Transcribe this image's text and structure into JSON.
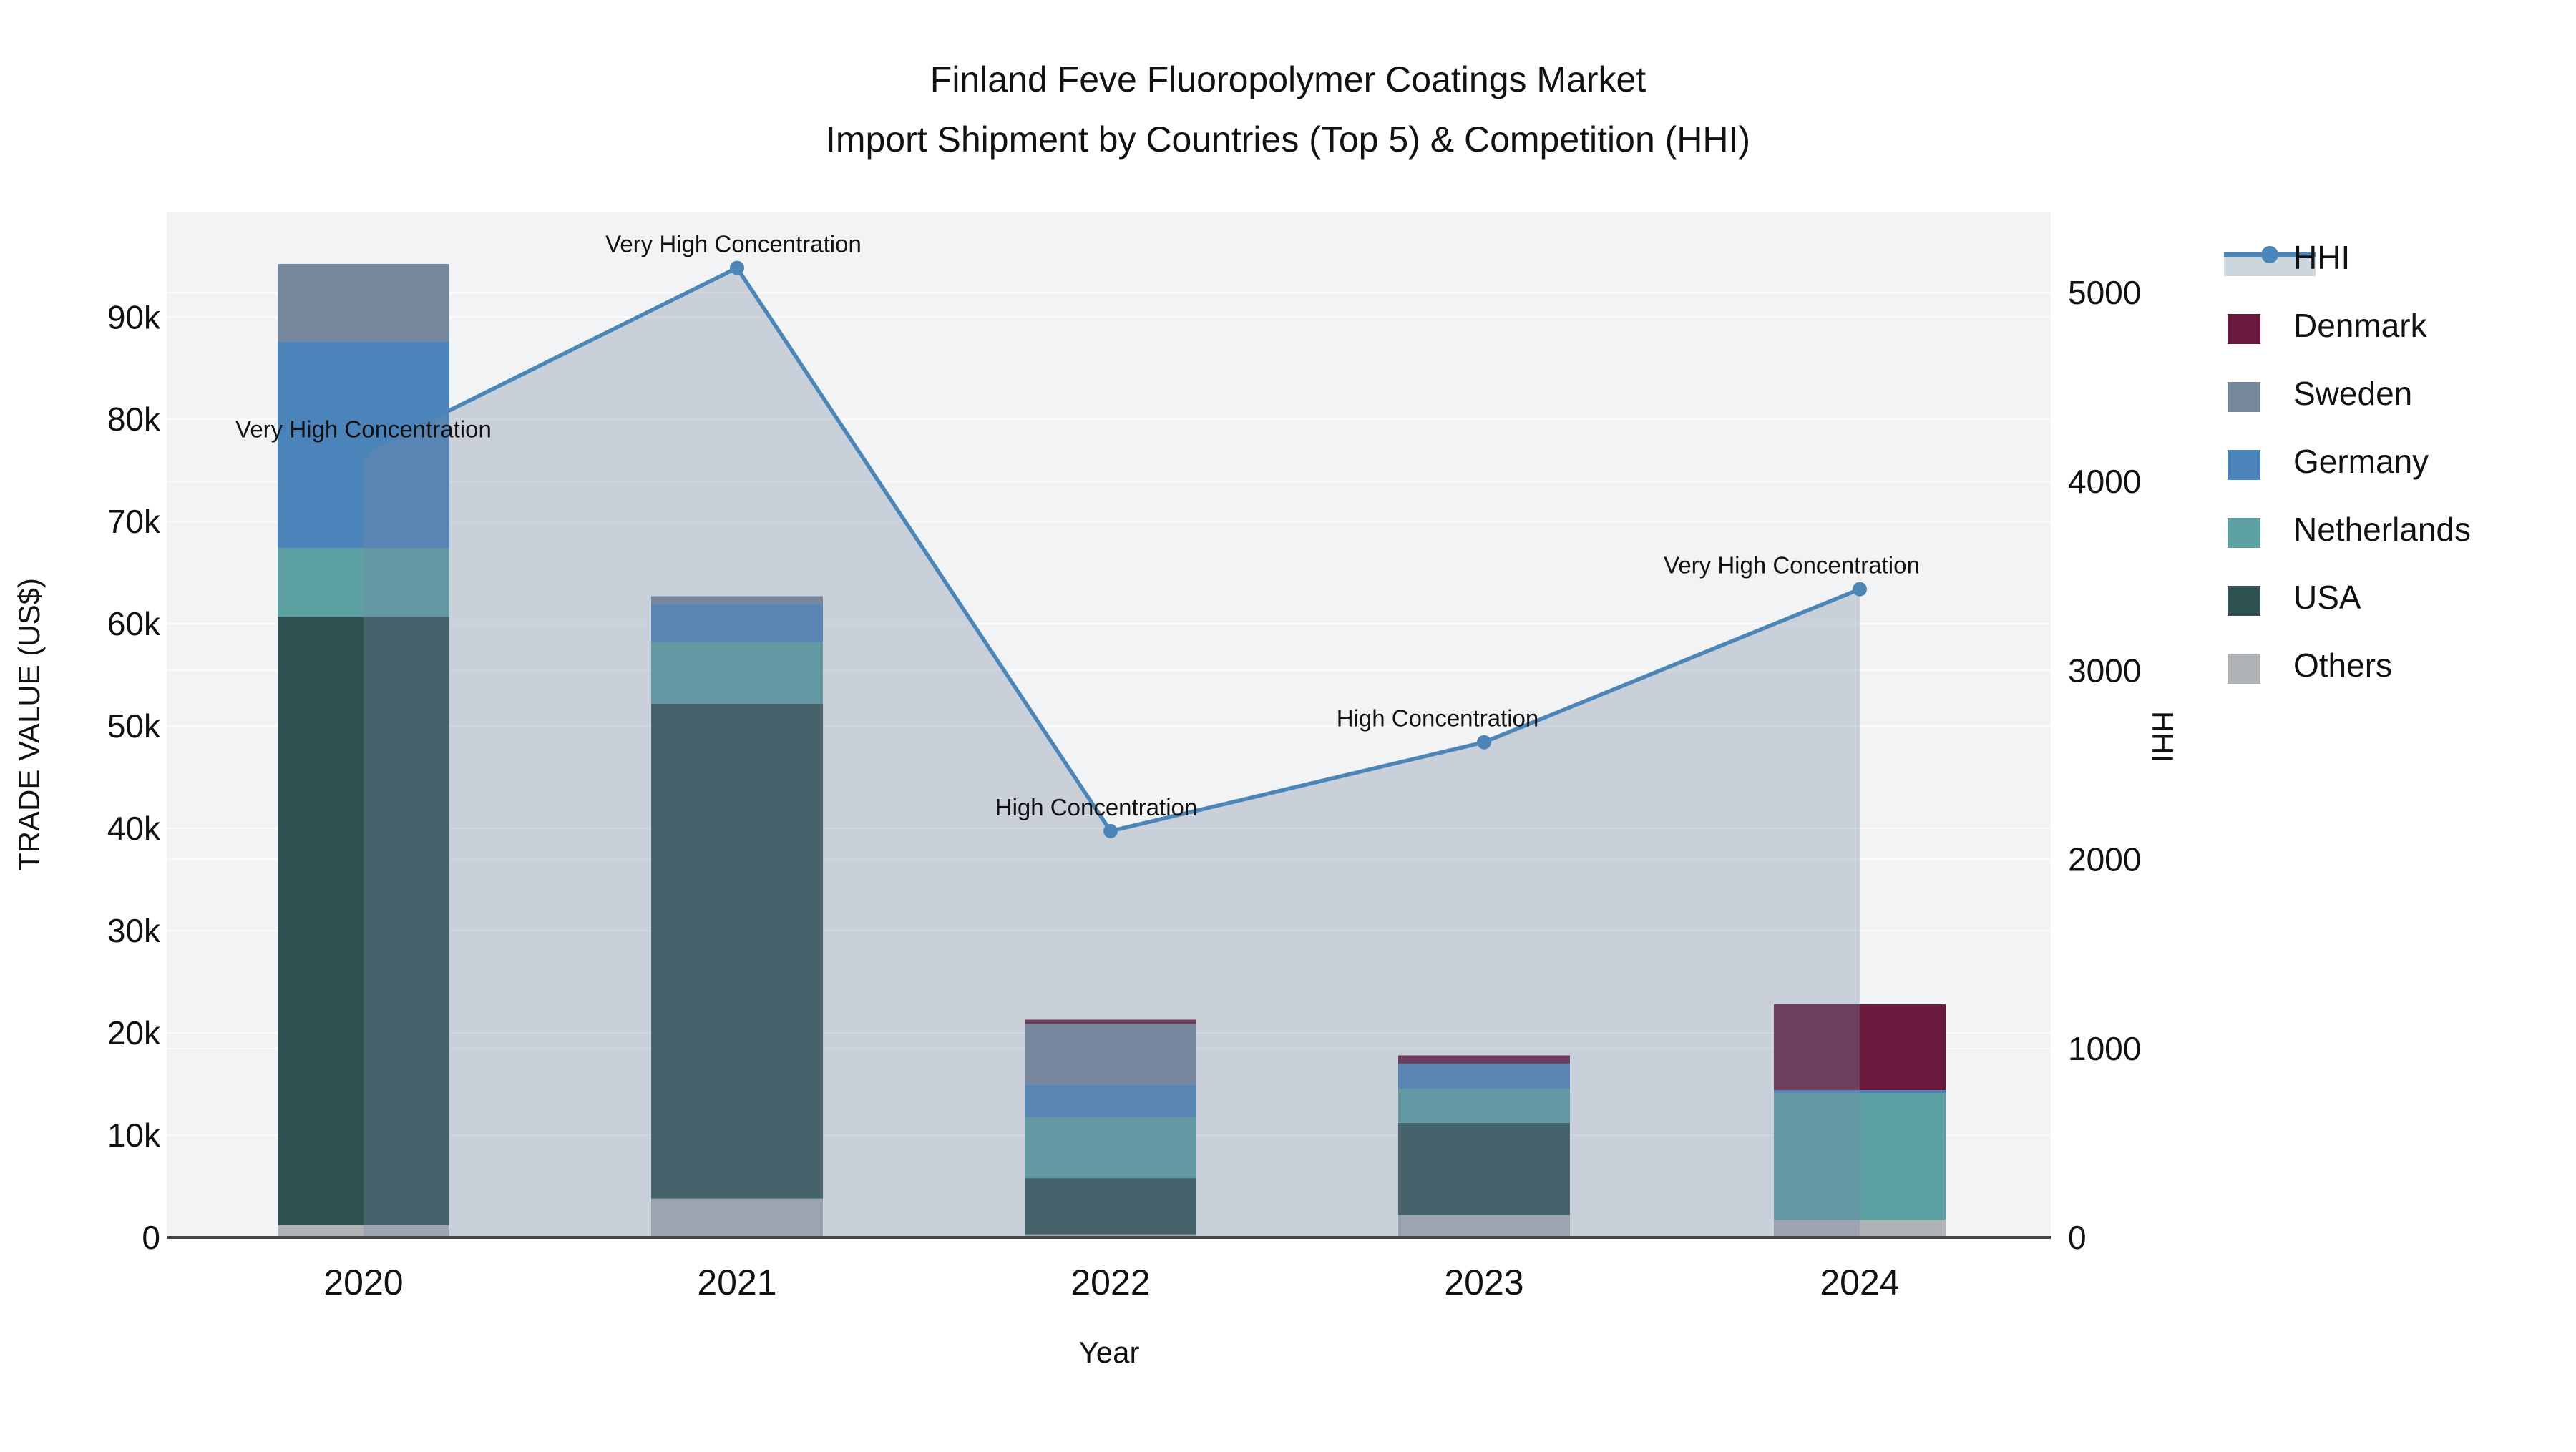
{
  "title": {
    "line1": "Finland Feve Fluoropolymer Coatings Market",
    "line2": "Import Shipment by Countries (Top 5) & Competition (HHI)"
  },
  "axes": {
    "left": {
      "title": "TRADE VALUE (US$)",
      "tick_labels": [
        "0",
        "10k",
        "20k",
        "30k",
        "40k",
        "50k",
        "60k",
        "70k",
        "80k",
        "90k"
      ]
    },
    "right": {
      "title": "HHI",
      "tick_labels": [
        "0",
        "1000",
        "2000",
        "3000",
        "4000",
        "5000"
      ]
    },
    "x": {
      "title": "Year",
      "tick_labels": [
        "2020",
        "2021",
        "2022",
        "2023",
        "2024"
      ]
    }
  },
  "legend": {
    "items": [
      {
        "label": "HHI",
        "type": "line",
        "color": "#4C86B8"
      },
      {
        "label": "Denmark",
        "type": "swatch",
        "color": "#691A3D"
      },
      {
        "label": "Sweden",
        "type": "swatch",
        "color": "#76879B"
      },
      {
        "label": "Germany",
        "type": "swatch",
        "color": "#4A84BB"
      },
      {
        "label": "Netherlands",
        "type": "swatch",
        "color": "#5CA0A2"
      },
      {
        "label": "USA",
        "type": "swatch",
        "color": "#2F5150"
      },
      {
        "label": "Others",
        "type": "swatch",
        "color": "#AFB3B5"
      }
    ]
  },
  "colors": {
    "plot_background": "#F2F3F4",
    "gridline": "#FFFFFF",
    "axis_line": "#444444",
    "hhi_line": "#4C86B8",
    "hhi_fill": "rgba(119,138,163,0.33)",
    "denmark": "#691A3D",
    "sweden": "#76879B",
    "germany": "#4A84BB",
    "netherlands": "#5CA0A2",
    "usa": "#2F5150",
    "others": "#AFB3B5"
  },
  "chart_data": {
    "type": [
      "bar",
      "line"
    ],
    "title": "Finland Feve Fluoropolymer Coatings Market — Import Shipment by Countries (Top 5) & Competition (HHI)",
    "categories": [
      "2020",
      "2021",
      "2022",
      "2023",
      "2024"
    ],
    "xlabel": "Year",
    "ylabel_left": "TRADE VALUE (US$)",
    "ylabel_right": "HHI",
    "left_axis_range": [
      0,
      100300
    ],
    "right_axis_range": [
      0,
      5427
    ],
    "left_ticks": [
      0,
      10000,
      20000,
      30000,
      40000,
      50000,
      60000,
      70000,
      80000,
      90000
    ],
    "right_ticks": [
      0,
      1000,
      2000,
      3000,
      4000,
      5000
    ],
    "grid": true,
    "legend_position": "right",
    "bar_stack_order_bottom_to_top": [
      "Others",
      "USA",
      "Netherlands",
      "Germany",
      "Sweden",
      "Denmark"
    ],
    "series": [
      {
        "name": "Others",
        "values": [
          1200,
          3800,
          300,
          2200,
          1700
        ],
        "color": "#AFB3B5"
      },
      {
        "name": "USA",
        "values": [
          59500,
          48400,
          5500,
          9000,
          0
        ],
        "color": "#2F5150"
      },
      {
        "name": "Netherlands",
        "values": [
          6700,
          6000,
          5900,
          3300,
          12400
        ],
        "color": "#5CA0A2"
      },
      {
        "name": "Germany",
        "values": [
          20200,
          3700,
          3200,
          2500,
          300
        ],
        "color": "#4A84BB"
      },
      {
        "name": "Sweden",
        "values": [
          7600,
          800,
          6000,
          0,
          0
        ],
        "color": "#76879B"
      },
      {
        "name": "Denmark",
        "values": [
          0,
          0,
          400,
          800,
          8400
        ],
        "color": "#691A3D"
      }
    ],
    "line_series": {
      "name": "HHI",
      "values": [
        4150,
        5130,
        2150,
        2620,
        3430
      ],
      "color": "#4C86B8",
      "area_fill": "rgba(119,138,163,0.33)"
    },
    "annotations": [
      {
        "year": "2020",
        "text": "Very High Concentration"
      },
      {
        "year": "2021",
        "text": "Very High Concentration"
      },
      {
        "year": "2022",
        "text": "High Concentration"
      },
      {
        "year": "2023",
        "text": "High Concentration"
      },
      {
        "year": "2024",
        "text": "Very High Concentration"
      }
    ]
  }
}
